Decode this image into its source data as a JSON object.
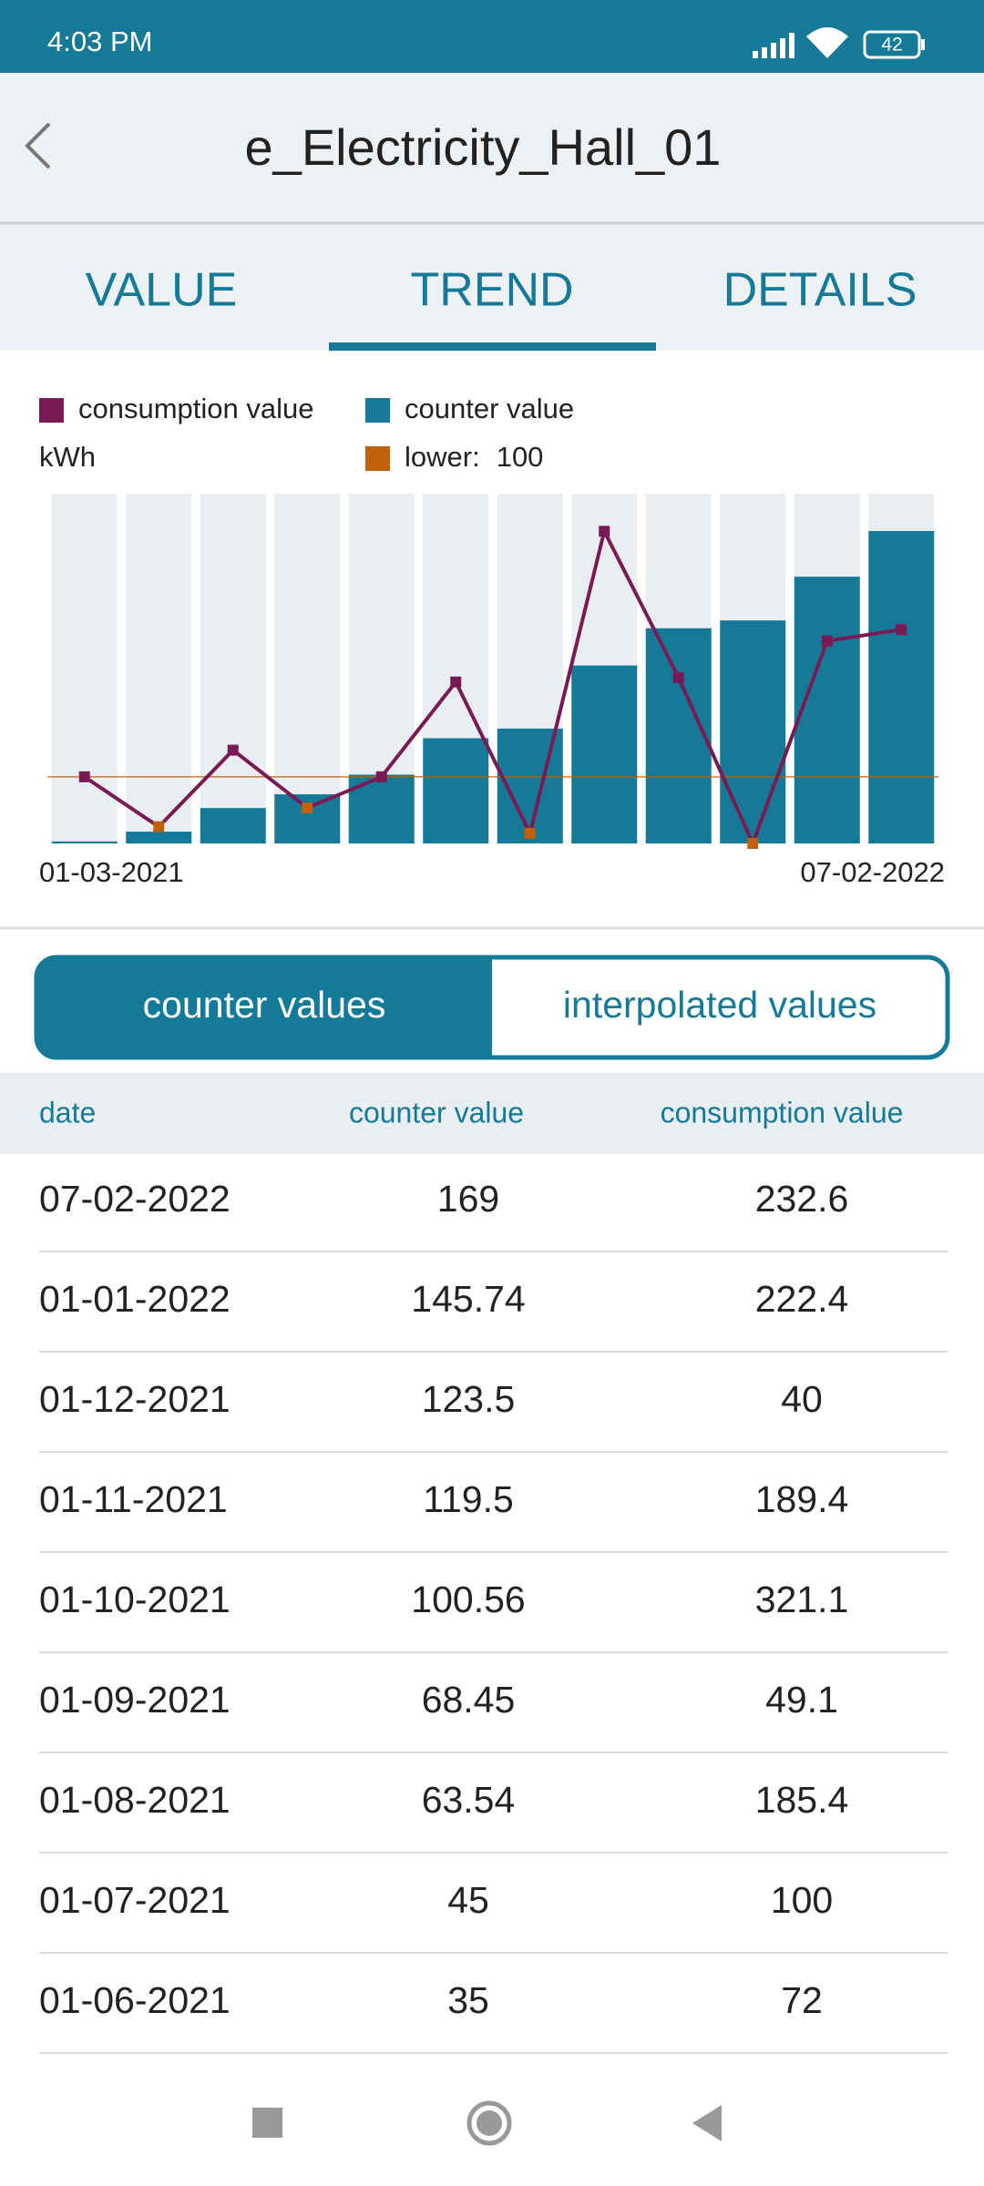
{
  "status_bar": {
    "time": "4:03 PM",
    "battery": "42"
  },
  "header": {
    "title": "e_Electricity_Hall_01"
  },
  "tabs": [
    "VALUE",
    "TREND",
    "DETAILS"
  ],
  "chart_data": {
    "type": "bar",
    "categories": [
      "01-03-2021",
      null,
      null,
      null,
      null,
      null,
      null,
      null,
      null,
      null,
      null,
      "07-02-2022"
    ],
    "series": [
      {
        "name": "consumption value",
        "color": "#7a1a55",
        "axis": "y2",
        "values": [
          100,
          55,
          124,
          72,
          100,
          185.4,
          49.1,
          321.1,
          189.4,
          40,
          222.4,
          232.6
        ]
      },
      {
        "name": "counter value",
        "color": "#157a97",
        "values": [
          11,
          16,
          28,
          35,
          45,
          63.54,
          68.45,
          100.56,
          119.5,
          123.5,
          145.74,
          169
        ]
      }
    ],
    "unit": "kWh",
    "threshold": {
      "label": "lower:",
      "value": 100,
      "color": "#c0600a"
    },
    "band_color": "#e9eef2",
    "ylim": [
      10,
      188
    ],
    "y2lim": [
      40,
      355
    ],
    "legend": "top-left"
  },
  "toggle": [
    "counter values",
    "interpolated values"
  ],
  "table": {
    "headers": [
      "date",
      "counter value",
      "consumption value"
    ],
    "rows": [
      [
        "07-02-2022",
        169,
        232.6
      ],
      [
        "01-01-2022",
        145.74,
        222.4
      ],
      [
        "01-12-2021",
        123.5,
        40
      ],
      [
        "01-11-2021",
        119.5,
        189.4
      ],
      [
        "01-10-2021",
        100.56,
        321.1
      ],
      [
        "01-09-2021",
        68.45,
        49.1
      ],
      [
        "01-08-2021",
        63.54,
        185.4
      ],
      [
        "01-07-2021",
        45,
        100
      ],
      [
        "01-06-2021",
        35,
        72
      ]
    ]
  }
}
